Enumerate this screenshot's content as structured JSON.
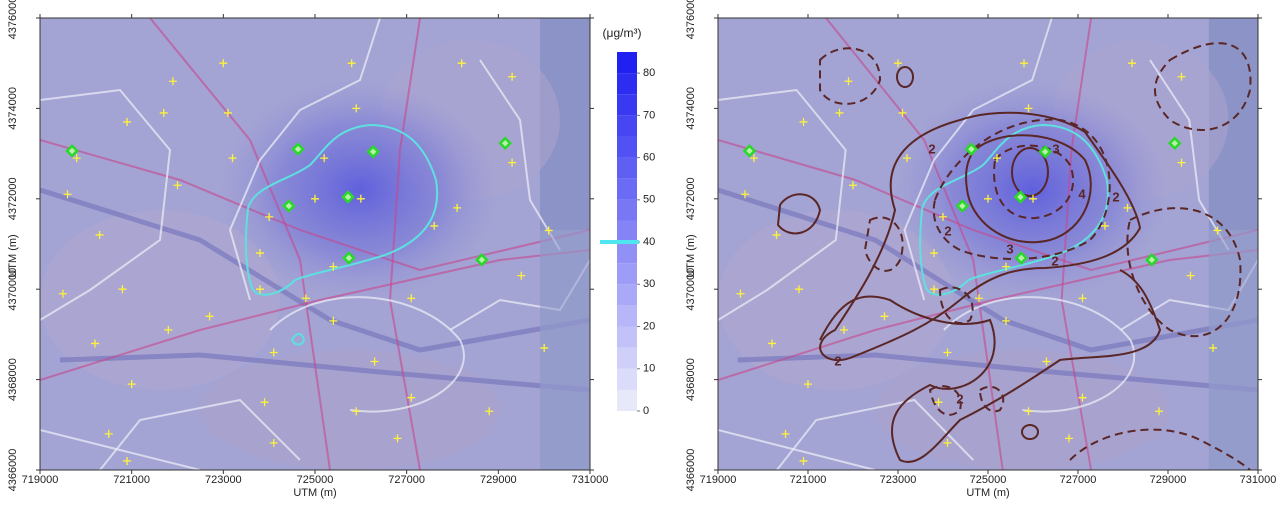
{
  "panels": [
    {
      "xlabel": "UTM (m)",
      "ylabel": "UTM (m)",
      "xlim": [
        719000,
        731000
      ],
      "ylim": [
        4366000,
        4376000
      ],
      "xticks": [
        719000,
        721000,
        723000,
        725000,
        727000,
        729000,
        731000
      ],
      "yticks": [
        4366000,
        4368000,
        4370000,
        4372000,
        4374000,
        4376000
      ]
    },
    {
      "xlabel": "UTM (m)",
      "ylabel": "UTM (m)",
      "xlim": [
        719000,
        731000
      ],
      "ylim": [
        4366000,
        4376000
      ],
      "xticks": [
        719000,
        721000,
        723000,
        725000,
        727000,
        729000,
        731000
      ],
      "yticks": [
        4366000,
        4368000,
        4370000,
        4372000,
        4374000,
        4376000
      ],
      "contour_labels": [
        2,
        3,
        4,
        2,
        3,
        2,
        2,
        2,
        2
      ]
    }
  ],
  "colorbar": {
    "unit": "(μg/m³)",
    "lim": [
      0,
      85
    ],
    "ticks": [
      0,
      10,
      20,
      30,
      40,
      50,
      60,
      70,
      80
    ],
    "threshold": 40
  },
  "sites": {
    "monitors": {
      "x": [
        719700,
        724630,
        726270,
        725720,
        724430,
        725740,
        728640,
        729150
      ],
      "y": [
        4373060,
        4373100,
        4373040,
        4372040,
        4371840,
        4370690,
        4370650,
        4373230
      ]
    },
    "receptors": {
      "x": [
        719800,
        719600,
        720900,
        721700,
        720300,
        719500,
        720800,
        720200,
        721000,
        720500,
        720900,
        721800,
        722700,
        722000,
        721900,
        723100,
        723200,
        723800,
        723800,
        724800,
        724100,
        723900,
        724100,
        725400,
        726300,
        725900,
        726800,
        727100,
        727100,
        727600,
        728100,
        729300,
        729300,
        728200,
        725800,
        723000,
        730100,
        729500,
        730000,
        728800,
        726000,
        725900,
        725200,
        725000,
        725400,
        724000
      ],
      "y": [
        4372900,
        4372100,
        4373700,
        4373900,
        4371200,
        4369900,
        4370000,
        4368800,
        4367900,
        4366800,
        4366200,
        4369100,
        4369400,
        4372300,
        4374600,
        4373900,
        4372900,
        4370800,
        4370000,
        4369800,
        4368600,
        4367500,
        4366600,
        4369300,
        4368400,
        4367300,
        4366700,
        4367600,
        4369800,
        4371400,
        4371800,
        4372800,
        4374700,
        4375000,
        4375000,
        4375000,
        4371300,
        4370300,
        4368700,
        4367300,
        4372000,
        4374000,
        4372900,
        4372000,
        4370500,
        4371600
      ]
    }
  }
}
